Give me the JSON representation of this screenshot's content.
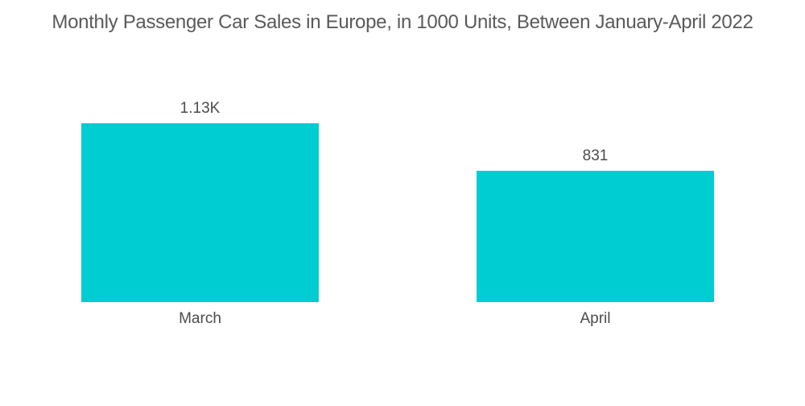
{
  "title": "Monthly Passenger Car Sales in Europe, in 1000 Units, Between January-April 2022",
  "colors": {
    "bar": "#00cdd2",
    "title_text": "#595a5c",
    "label_text": "#4b4c4e",
    "background": "#ffffff"
  },
  "chart_data": {
    "type": "bar",
    "title": "Monthly Passenger Car Sales in Europe, in 1000 Units, Between January-April 2022",
    "categories": [
      "March",
      "April"
    ],
    "values": [
      1130,
      831
    ],
    "value_labels": [
      "1.13K",
      "831"
    ],
    "xlabel": "",
    "ylabel": "",
    "ylim": [
      0,
      1130
    ],
    "grid": false,
    "legend": false,
    "orientation": "vertical",
    "axes_shown": false
  }
}
